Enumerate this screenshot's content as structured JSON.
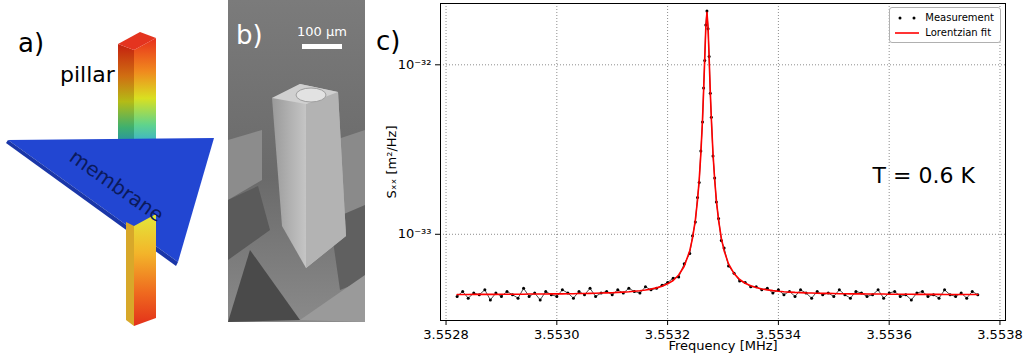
{
  "panels": [
    {
      "label": "a)",
      "texts": [
        "pillar",
        "membrane"
      ]
    },
    {
      "label": "b)",
      "scale_bar": "100 µm"
    },
    {
      "label": "c)"
    }
  ],
  "chart_data": {
    "type": "line",
    "x_label": "Frequency [MHz]",
    "y_label": "Sₓₓ [m²/Hz]",
    "annotations": [
      {
        "text": "T = 0.6 K",
        "x": 3.55357,
        "y": 2.2e-33
      }
    ],
    "log": "y",
    "grid": true,
    "legend": "upper right",
    "xlim": [
      3.55279,
      3.55381
    ],
    "xticks": [
      3.5528,
      {
        "value": 3.553,
        "label": "3.5530"
      },
      3.5532,
      3.5534,
      3.5536,
      3.5538
    ],
    "ylim": [
      3.1e-34,
      2.3e-32
    ],
    "yticks": [
      {
        "value": 1e-33,
        "label": "10⁻³³"
      },
      {
        "value": 1e-32,
        "label": "10⁻³²"
      }
    ],
    "x": [
      3.55282,
      3.55283,
      3.55284,
      3.55285,
      3.55286,
      3.55287,
      3.55288,
      3.55289,
      3.5529,
      3.55291,
      3.55292,
      3.55293,
      3.55294,
      3.55295,
      3.55296,
      3.55297,
      3.55298,
      3.55299,
      3.553,
      3.55301,
      3.55302,
      3.55303,
      3.55304,
      3.55305,
      3.55306,
      3.55307,
      3.55308,
      3.55309,
      3.5531,
      3.55311,
      3.55312,
      3.55313,
      3.55314,
      3.55315,
      3.55316,
      3.55317,
      3.55318,
      3.55319,
      3.5532,
      3.55321,
      3.55322,
      3.55323,
      3.55324,
      3.553245,
      3.55325,
      3.553254,
      3.553257,
      3.55326,
      3.553263,
      3.553265,
      3.553267,
      3.553269,
      3.553271,
      3.553273,
      3.553275,
      3.553277,
      3.553279,
      3.553282,
      3.553285,
      3.553288,
      3.553292,
      3.553297,
      3.553302,
      3.55331,
      3.55332,
      3.55333,
      3.55334,
      3.55335,
      3.55336,
      3.55337,
      3.55338,
      3.55339,
      3.5534,
      3.55341,
      3.55342,
      3.55343,
      3.55344,
      3.55345,
      3.55346,
      3.55347,
      3.55348,
      3.55349,
      3.5535,
      3.55351,
      3.55352,
      3.55353,
      3.55354,
      3.55355,
      3.55356,
      3.55357,
      3.55358,
      3.55359,
      3.5536,
      3.55361,
      3.55362,
      3.55363,
      3.55364,
      3.55365,
      3.55366,
      3.55367,
      3.55368,
      3.55369,
      3.5537,
      3.55371,
      3.55372,
      3.55373,
      3.55374,
      3.55375,
      3.55376
    ],
    "series": [
      {
        "name": "Measurement",
        "color": "#000000",
        "marker": "dot",
        "line_style": "solid",
        "values": [
          4.3e-34,
          4.6e-34,
          4.2e-34,
          4.5e-34,
          4.4e-34,
          4.7e-34,
          4.1e-34,
          4.5e-34,
          4.3e-34,
          4.6e-34,
          4.4e-34,
          4.2e-34,
          4.8e-34,
          4.3e-34,
          4.5e-34,
          4.1e-34,
          4.6e-34,
          4.4e-34,
          4.3e-34,
          4.7e-34,
          4.5e-34,
          4.2e-34,
          4.6e-34,
          4.4e-34,
          4.8e-34,
          4.3e-34,
          4.5e-34,
          4.6e-34,
          4.4e-34,
          4.7e-34,
          4.5e-34,
          4.8e-34,
          4.6e-34,
          4.5e-34,
          4.9e-34,
          4.7e-34,
          4.8e-34,
          5e-34,
          5.2e-34,
          5.5e-34,
          5.6e-34,
          6.7e-34,
          7.7e-34,
          9.8e-34,
          1.18e-33,
          1.65e-33,
          2.02e-33,
          3.1e-33,
          4.6e-33,
          7.3e-33,
          1.06e-32,
          1.72e-32,
          2.08e-32,
          1.63e-32,
          1.12e-32,
          6.8e-33,
          4.9e-33,
          2.9e-33,
          2.15e-33,
          1.55e-33,
          1.24e-33,
          9.2e-34,
          8.3e-34,
          6.5e-34,
          5.9e-34,
          5.3e-34,
          5.2e-34,
          4.9e-34,
          4.9e-34,
          4.7e-34,
          4.8e-34,
          4.5e-34,
          4.7e-34,
          4.4e-34,
          4.6e-34,
          4.3e-34,
          4.7e-34,
          4.5e-34,
          4.2e-34,
          4.6e-34,
          4.4e-34,
          4.5e-34,
          4.3e-34,
          4.7e-34,
          4.4e-34,
          4.2e-34,
          4.6e-34,
          4.5e-34,
          4.3e-34,
          4.4e-34,
          4.7e-34,
          4.2e-34,
          4.5e-34,
          4.6e-34,
          4.3e-34,
          4.4e-34,
          4.1e-34,
          4.5e-34,
          4.6e-34,
          4.3e-34,
          4.4e-34,
          4.2e-34,
          4.7e-34,
          4.4e-34,
          4.3e-34,
          4.5e-34,
          4.2e-34,
          4.6e-34,
          4.4e-34
        ]
      },
      {
        "name": "Lorentzian fit",
        "color": "#ff0000",
        "type": "line",
        "line_style": "solid",
        "values": [
          4.41e-34,
          4.41e-34,
          4.41e-34,
          4.42e-34,
          4.42e-34,
          4.42e-34,
          4.42e-34,
          4.42e-34,
          4.43e-34,
          4.43e-34,
          4.43e-34,
          4.43e-34,
          4.43e-34,
          4.44e-34,
          4.44e-34,
          4.44e-34,
          4.44e-34,
          4.45e-34,
          4.45e-34,
          4.45e-34,
          4.46e-34,
          4.46e-34,
          4.47e-34,
          4.47e-34,
          4.48e-34,
          4.49e-34,
          4.5e-34,
          4.51e-34,
          4.52e-34,
          4.54e-34,
          4.56e-34,
          4.58e-34,
          4.61e-34,
          4.64e-34,
          4.69e-34,
          4.75e-34,
          4.83e-34,
          4.94e-34,
          5.1e-34,
          5.34e-34,
          5.75e-34,
          6.48e-34,
          8e-34,
          9.49e-34,
          1.209e-33,
          1.59e-33,
          2.09e-33,
          2.98e-33,
          4.76e-33,
          7.02e-33,
          1.093e-32,
          1.674e-32,
          2.044e-32,
          1.674e-32,
          1.093e-32,
          7.02e-33,
          4.76e-33,
          2.98e-33,
          2.09e-33,
          1.59e-33,
          1.209e-33,
          9.49e-34,
          8e-34,
          6.69e-34,
          5.86e-34,
          5.41e-34,
          5.14e-34,
          4.97e-34,
          4.85e-34,
          4.76e-34,
          4.7e-34,
          4.65e-34,
          4.61e-34,
          4.58e-34,
          4.56e-34,
          4.54e-34,
          4.53e-34,
          4.51e-34,
          4.5e-34,
          4.49e-34,
          4.48e-34,
          4.48e-34,
          4.47e-34,
          4.46e-34,
          4.46e-34,
          4.45e-34,
          4.45e-34,
          4.45e-34,
          4.44e-34,
          4.44e-34,
          4.44e-34,
          4.44e-34,
          4.43e-34,
          4.43e-34,
          4.43e-34,
          4.43e-34,
          4.43e-34,
          4.42e-34,
          4.42e-34,
          4.42e-34,
          4.42e-34,
          4.42e-34,
          4.41e-34,
          4.41e-34,
          4.41e-34,
          4.41e-34,
          4.41e-34,
          4.41e-34,
          4.41e-34
        ]
      }
    ]
  }
}
